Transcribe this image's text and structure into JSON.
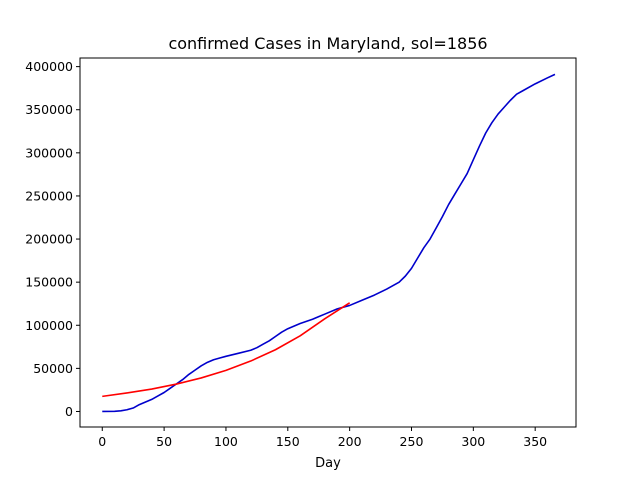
{
  "chart_data": {
    "type": "line",
    "title": "confirmed Cases in Maryland, sol=1856",
    "xlabel": "Day",
    "ylabel": "",
    "xlim": [
      -18,
      383
    ],
    "ylim": [
      -18000,
      410000
    ],
    "xticks": [
      0,
      50,
      100,
      150,
      200,
      250,
      300,
      350
    ],
    "yticks": [
      0,
      50000,
      100000,
      150000,
      200000,
      250000,
      300000,
      350000,
      400000
    ],
    "grid": false,
    "legend": "none",
    "series": [
      {
        "color": "#0000cc",
        "x": [
          0,
          10,
          15,
          20,
          25,
          30,
          35,
          40,
          45,
          50,
          55,
          60,
          65,
          70,
          75,
          80,
          85,
          90,
          95,
          100,
          110,
          120,
          125,
          130,
          135,
          140,
          145,
          150,
          160,
          170,
          175,
          180,
          190,
          200,
          210,
          220,
          230,
          240,
          245,
          250,
          255,
          260,
          265,
          270,
          275,
          280,
          285,
          290,
          295,
          300,
          305,
          310,
          315,
          320,
          325,
          330,
          335,
          340,
          350,
          360,
          366
        ],
        "values": [
          0,
          200,
          800,
          2000,
          4000,
          8000,
          11000,
          14000,
          18000,
          22000,
          27000,
          32000,
          37000,
          43000,
          48000,
          53000,
          57000,
          60000,
          62000,
          64000,
          67500,
          71000,
          74000,
          78000,
          82000,
          87000,
          92000,
          96000,
          102000,
          107000,
          110000,
          113000,
          119000,
          123000,
          129000,
          135000,
          142000,
          150000,
          157000,
          166000,
          178000,
          190000,
          200000,
          213000,
          226000,
          240000,
          252000,
          264000,
          276000,
          292000,
          308000,
          323000,
          335000,
          345000,
          353000,
          361000,
          368000,
          372000,
          380000,
          387000,
          391000
        ]
      },
      {
        "color": "#ff0000",
        "x": [
          0,
          20,
          40,
          60,
          80,
          100,
          120,
          140,
          160,
          180,
          200
        ],
        "values": [
          17500,
          21500,
          26000,
          31800,
          38900,
          47700,
          58500,
          71600,
          87800,
          107600,
          126000
        ]
      }
    ]
  }
}
